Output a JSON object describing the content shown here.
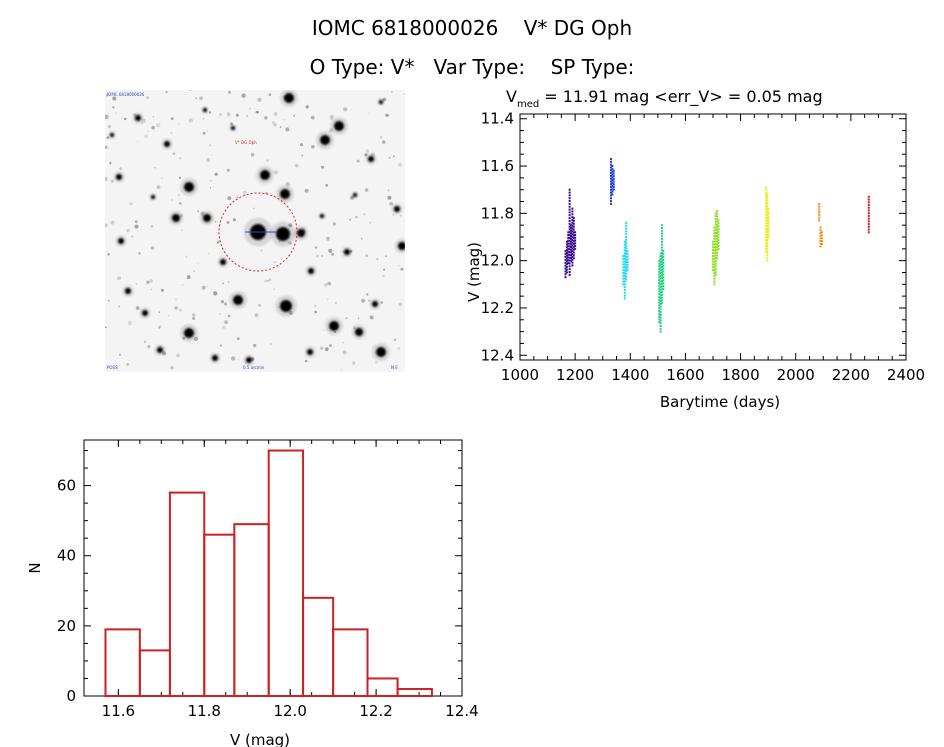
{
  "header": {
    "line1": "IOMC 6818000026    V* DG Oph",
    "line2": "O Type: V*   Var Type:    SP Type:"
  },
  "colors": {
    "frame": "#000000",
    "histogram": "#cc2222",
    "aperture": "#dd2222",
    "stamp_labels": "#3344cc"
  },
  "stamp": {
    "type": "image",
    "label_top_left": "IOMC 6818000026",
    "label_target": "V* DG Oph",
    "label_bottom_left": "POSS",
    "label_bottom_center": "0.5 arcmin",
    "label_bottom_right": "N E"
  },
  "chart_data": [
    {
      "type": "scatter",
      "title_prefix": "V",
      "title_subscript": "med",
      "title_rest": " = 11.91 mag <err_V> = 0.05 mag",
      "xlabel": "Barytime (days)",
      "ylabel": "V (mag)",
      "xlim": [
        1000,
        2400
      ],
      "ylim": [
        12.42,
        11.38
      ],
      "y_inverted": true,
      "xticks": [
        1000,
        1200,
        1400,
        1600,
        1800,
        2000,
        2200,
        2400
      ],
      "yticks": [
        11.4,
        11.6,
        11.8,
        12.0,
        12.2,
        12.4
      ],
      "xtick_labels": [
        "1000",
        "1200",
        "1400",
        "1600",
        "1800",
        "2000",
        "2200",
        "2400"
      ],
      "ytick_labels": [
        "11.4",
        "11.6",
        "11.8",
        "12.0",
        "12.2",
        "12.4"
      ],
      "grid": false,
      "series": [
        {
          "color": "#3a0a8a",
          "x": [
            1165,
            1170,
            1175,
            1180,
            1185,
            1190,
            1195,
            1200
          ],
          "y_min": [
            11.96,
            11.92,
            11.88,
            11.7,
            11.85,
            11.78,
            11.82,
            11.88
          ],
          "y_max": [
            12.07,
            12.05,
            12.01,
            12.06,
            12.0,
            12.02,
            11.99,
            11.95
          ]
        },
        {
          "color": "#1f3fcf",
          "x": [
            1330,
            1335,
            1340
          ],
          "y_min": [
            11.57,
            11.6,
            11.62
          ],
          "y_max": [
            11.76,
            11.72,
            11.7
          ]
        },
        {
          "color": "#22d6f0",
          "x": [
            1375,
            1380,
            1385,
            1390
          ],
          "y_min": [
            11.98,
            11.92,
            11.84,
            11.96
          ],
          "y_max": [
            12.1,
            12.16,
            12.08,
            12.04
          ]
        },
        {
          "color": "#26d083",
          "x": [
            1505,
            1510,
            1515,
            1520
          ],
          "y_min": [
            12.0,
            11.97,
            11.85,
            11.96
          ],
          "y_max": [
            12.26,
            12.3,
            12.18,
            12.12
          ]
        },
        {
          "color": "#8fdf2a",
          "x": [
            1700,
            1705,
            1710,
            1715,
            1720
          ],
          "y_min": [
            11.92,
            11.86,
            11.8,
            11.79,
            11.83
          ],
          "y_max": [
            12.04,
            12.1,
            12.06,
            11.99,
            11.95
          ]
        },
        {
          "color": "#e8ee14",
          "x": [
            1893,
            1897,
            1901
          ],
          "y_min": [
            11.69,
            11.72,
            11.78
          ],
          "y_max": [
            11.96,
            12.0,
            11.9
          ]
        },
        {
          "color": "#f08f1c",
          "x": [
            2085,
            2090,
            2095
          ],
          "y_min": [
            11.76,
            11.86,
            11.88
          ],
          "y_max": [
            11.83,
            11.94,
            11.93
          ]
        },
        {
          "color": "#cc1d1d",
          "x": [
            2265
          ],
          "y_min": [
            11.73
          ],
          "y_max": [
            11.88
          ]
        }
      ]
    },
    {
      "type": "bar",
      "subtype": "histogram",
      "xlabel": "V (mag)",
      "ylabel": "N",
      "xlim": [
        11.52,
        12.4
      ],
      "ylim": [
        0,
        73
      ],
      "xticks": [
        11.6,
        11.8,
        12.0,
        12.2,
        12.4
      ],
      "yticks": [
        0,
        20,
        40,
        60
      ],
      "xtick_labels": [
        "11.6",
        "11.8",
        "12.0",
        "12.2",
        "12.4"
      ],
      "ytick_labels": [
        "0",
        "20",
        "40",
        "60"
      ],
      "bin_edges": [
        11.57,
        11.65,
        11.72,
        11.8,
        11.87,
        11.95,
        12.03,
        12.1,
        12.18,
        12.25,
        12.33
      ],
      "values": [
        19,
        13,
        58,
        46,
        49,
        70,
        28,
        19,
        5,
        2
      ],
      "grid": false
    }
  ]
}
